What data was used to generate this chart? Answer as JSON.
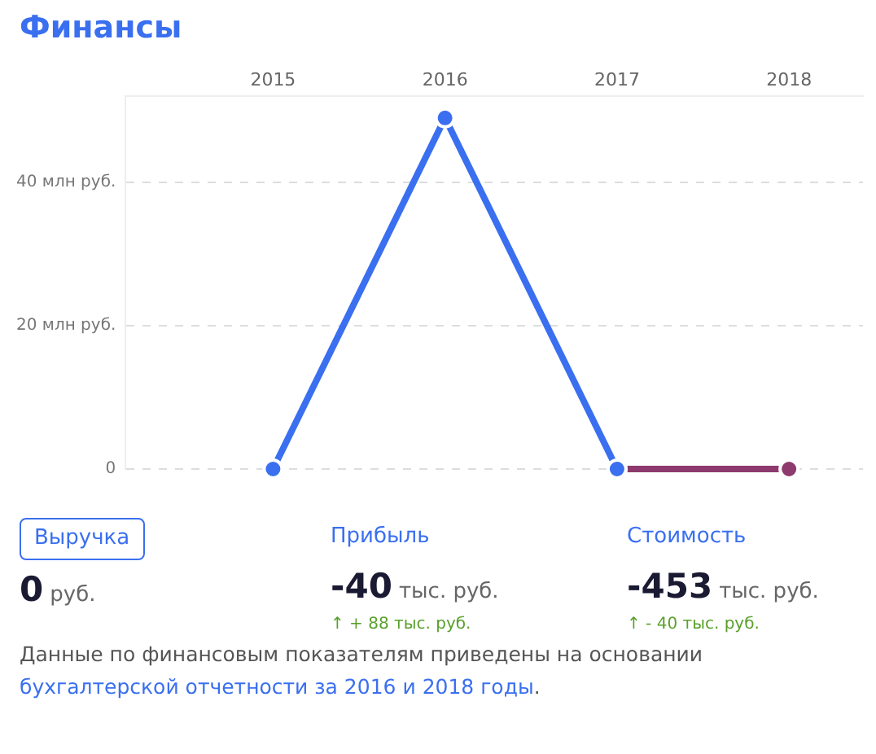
{
  "chart_data": {
    "type": "line",
    "title": "Финансы",
    "categories": [
      "2015",
      "2016",
      "2017",
      "2018"
    ],
    "series": [
      {
        "color": "#3a6ff0",
        "values": [
          0,
          49,
          0,
          null
        ]
      },
      {
        "color": "#8e3a6e",
        "values": [
          null,
          null,
          0,
          0
        ]
      }
    ],
    "ylim": [
      0,
      52
    ],
    "yticks": [
      {
        "value": 0,
        "label": "0"
      },
      {
        "value": 20,
        "label": "20 млн руб."
      },
      {
        "value": 40,
        "label": "40 млн руб."
      }
    ],
    "grid": "y",
    "marker": "circle",
    "line_style": "solid",
    "annotations": [
      "Выручка",
      "0",
      "руб.",
      "Прибыль",
      "-40",
      "тыс. руб.",
      "↑ + 88 тыс. руб.",
      "Стоимость",
      "-453",
      "тыс. руб.",
      "↑ - 40 тыс. руб.",
      "Данные по финансовым показателям приведены на основании ",
      "бухгалтерской отчетности за 2016 и 2018 годы",
      "."
    ]
  }
}
